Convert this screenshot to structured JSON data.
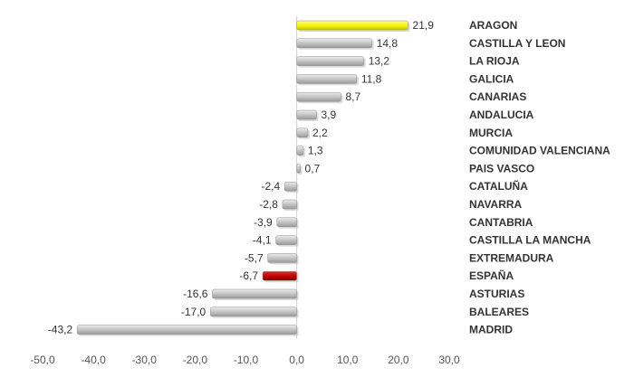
{
  "chart_data": {
    "type": "bar",
    "orientation": "horizontal",
    "categories": [
      "ARAGON",
      "CASTILLA Y LEON",
      "LA RIOJA",
      "GALICIA",
      "CANARIAS",
      "ANDALUCIA",
      "MURCIA",
      "COMUNIDAD VALENCIANA",
      "PAIS VASCO",
      "CATALUÑA",
      "NAVARRA",
      "CANTABRIA",
      "CASTILLA LA MANCHA",
      "EXTREMADURA",
      "ESPAÑA",
      "ASTURIAS",
      "BALEARES",
      "MADRID"
    ],
    "values": [
      21.9,
      14.8,
      13.2,
      11.8,
      8.7,
      3.9,
      2.2,
      1.3,
      0.7,
      -2.4,
      -2.8,
      -3.9,
      -4.1,
      -5.7,
      -6.7,
      -16.6,
      -17.0,
      -43.2
    ],
    "value_labels": [
      "21,9",
      "14,8",
      "13,2",
      "11,8",
      "8,7",
      "3,9",
      "2,2",
      "1,3",
      "0,7",
      "-2,4",
      "-2,8",
      "-3,9",
      "-4,1",
      "-5,7",
      "-6,7",
      "-16,6",
      "-17,0",
      "-43,2"
    ],
    "bar_colors": [
      "#f2f20a",
      "#c0c0c0",
      "#c0c0c0",
      "#c0c0c0",
      "#c0c0c0",
      "#c0c0c0",
      "#c0c0c0",
      "#c0c0c0",
      "#c0c0c0",
      "#c0c0c0",
      "#c0c0c0",
      "#c0c0c0",
      "#c0c0c0",
      "#c0c0c0",
      "#c00000",
      "#c0c0c0",
      "#c0c0c0",
      "#c0c0c0"
    ],
    "xlim": [
      -50,
      30
    ],
    "x_ticks": [
      -50,
      -40,
      -30,
      -20,
      -10,
      0,
      10,
      20,
      30
    ],
    "x_tick_labels": [
      "-50,0",
      "-40,0",
      "-30,0",
      "-20,0",
      "-10,0",
      "0,0",
      "10,0",
      "20,0",
      "30,0"
    ],
    "grid": false,
    "legend": "none",
    "title": "",
    "xlabel": "",
    "ylabel": ""
  }
}
